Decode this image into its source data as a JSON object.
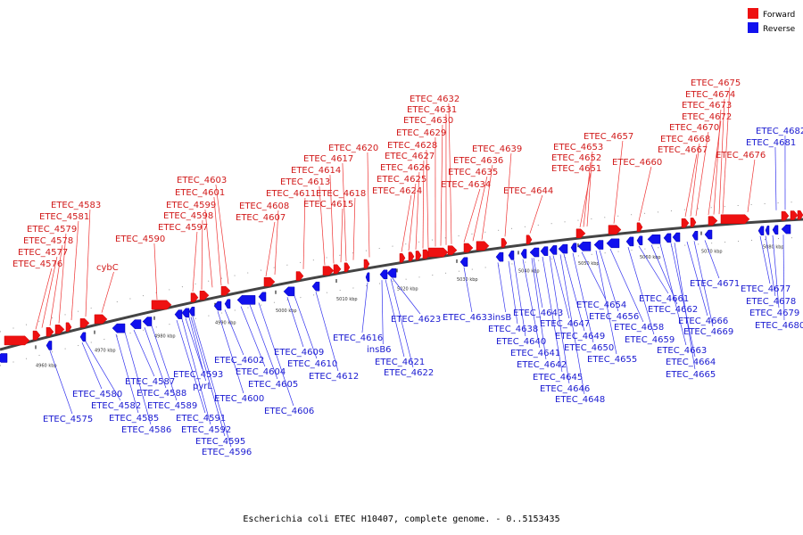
{
  "footer": "Escherichia coli ETEC H10407, complete genome. - 0..5153435",
  "legend": [
    {
      "label": "Forward",
      "color": "#ee1111"
    },
    {
      "label": "Reverse",
      "color": "#1111ee"
    }
  ],
  "kbp_labels": [
    "4960 kbp",
    "4970 kbp",
    "4980 kbp",
    "4990 kbp",
    "5000 kbp",
    "5010 kbp",
    "5020 kbp",
    "5030 kbp",
    "5040 kbp",
    "5050 kbp",
    "5060 kbp",
    "5070 kbp",
    "5080 kbp"
  ],
  "forward_labels": [
    "ETEC_4576",
    "ETEC_4577",
    "ETEC_4578",
    "ETEC_4579",
    "ETEC_4581",
    "ETEC_4583",
    "cybC",
    "ETEC_4590",
    "ETEC_4597",
    "ETEC_4598",
    "ETEC_4599",
    "ETEC_4601",
    "ETEC_4603",
    "ETEC_4607",
    "ETEC_4608",
    "ETEC_4611",
    "ETEC_4613",
    "ETEC_4614",
    "ETEC_4615",
    "ETEC_4617",
    "ETEC_4618",
    "ETEC_4620",
    "ETEC_4624",
    "ETEC_4625",
    "ETEC_4626",
    "ETEC_4627",
    "ETEC_4628",
    "ETEC_4629",
    "ETEC_4630",
    "ETEC_4631",
    "ETEC_4632",
    "ETEC_4634",
    "ETEC_4635",
    "ETEC_4636",
    "ETEC_4639",
    "ETEC_4644",
    "ETEC_4651",
    "ETEC_4652",
    "ETEC_4653",
    "ETEC_4657",
    "ETEC_4660",
    "ETEC_4667",
    "ETEC_4668",
    "ETEC_4670",
    "ETEC_4672",
    "ETEC_4673",
    "ETEC_4674",
    "ETEC_4675",
    "ETEC_4676"
  ],
  "reverse_labels": [
    "ETEC_4575",
    "ETEC_4580",
    "ETEC_4582",
    "ETEC_4585",
    "ETEC_4586",
    "ETEC_4587",
    "ETEC_4588",
    "ETEC_4589",
    "ETEC_4591",
    "ETEC_4592",
    "ETEC_4593",
    "pyrL",
    "ETEC_4595",
    "ETEC_4596",
    "ETEC_4600",
    "ETEC_4602",
    "ETEC_4604",
    "ETEC_4605",
    "ETEC_4606",
    "ETEC_4609",
    "ETEC_4610",
    "ETEC_4612",
    "ETEC_4616",
    "insB6",
    "ETEC_4621",
    "ETEC_4622",
    "ETEC_4623",
    "ETEC_4633",
    "insB",
    "ETEC_4638",
    "ETEC_4640",
    "ETEC_4641",
    "ETEC_4642",
    "ETEC_4643",
    "ETEC_4645",
    "ETEC_4646",
    "ETEC_4647",
    "ETEC_4648",
    "ETEC_4649",
    "ETEC_4650",
    "ETEC_4654",
    "ETEC_4655",
    "ETEC_4656",
    "ETEC_4658",
    "ETEC_4659",
    "ETEC_4661",
    "ETEC_4662",
    "ETEC_4663",
    "ETEC_4664",
    "ETEC_4665",
    "ETEC_4666",
    "ETEC_4669",
    "ETEC_4671",
    "ETEC_4677",
    "ETEC_4678",
    "ETEC_4679",
    "ETEC_4680",
    "ETEC_4681",
    "ETEC_4682"
  ]
}
